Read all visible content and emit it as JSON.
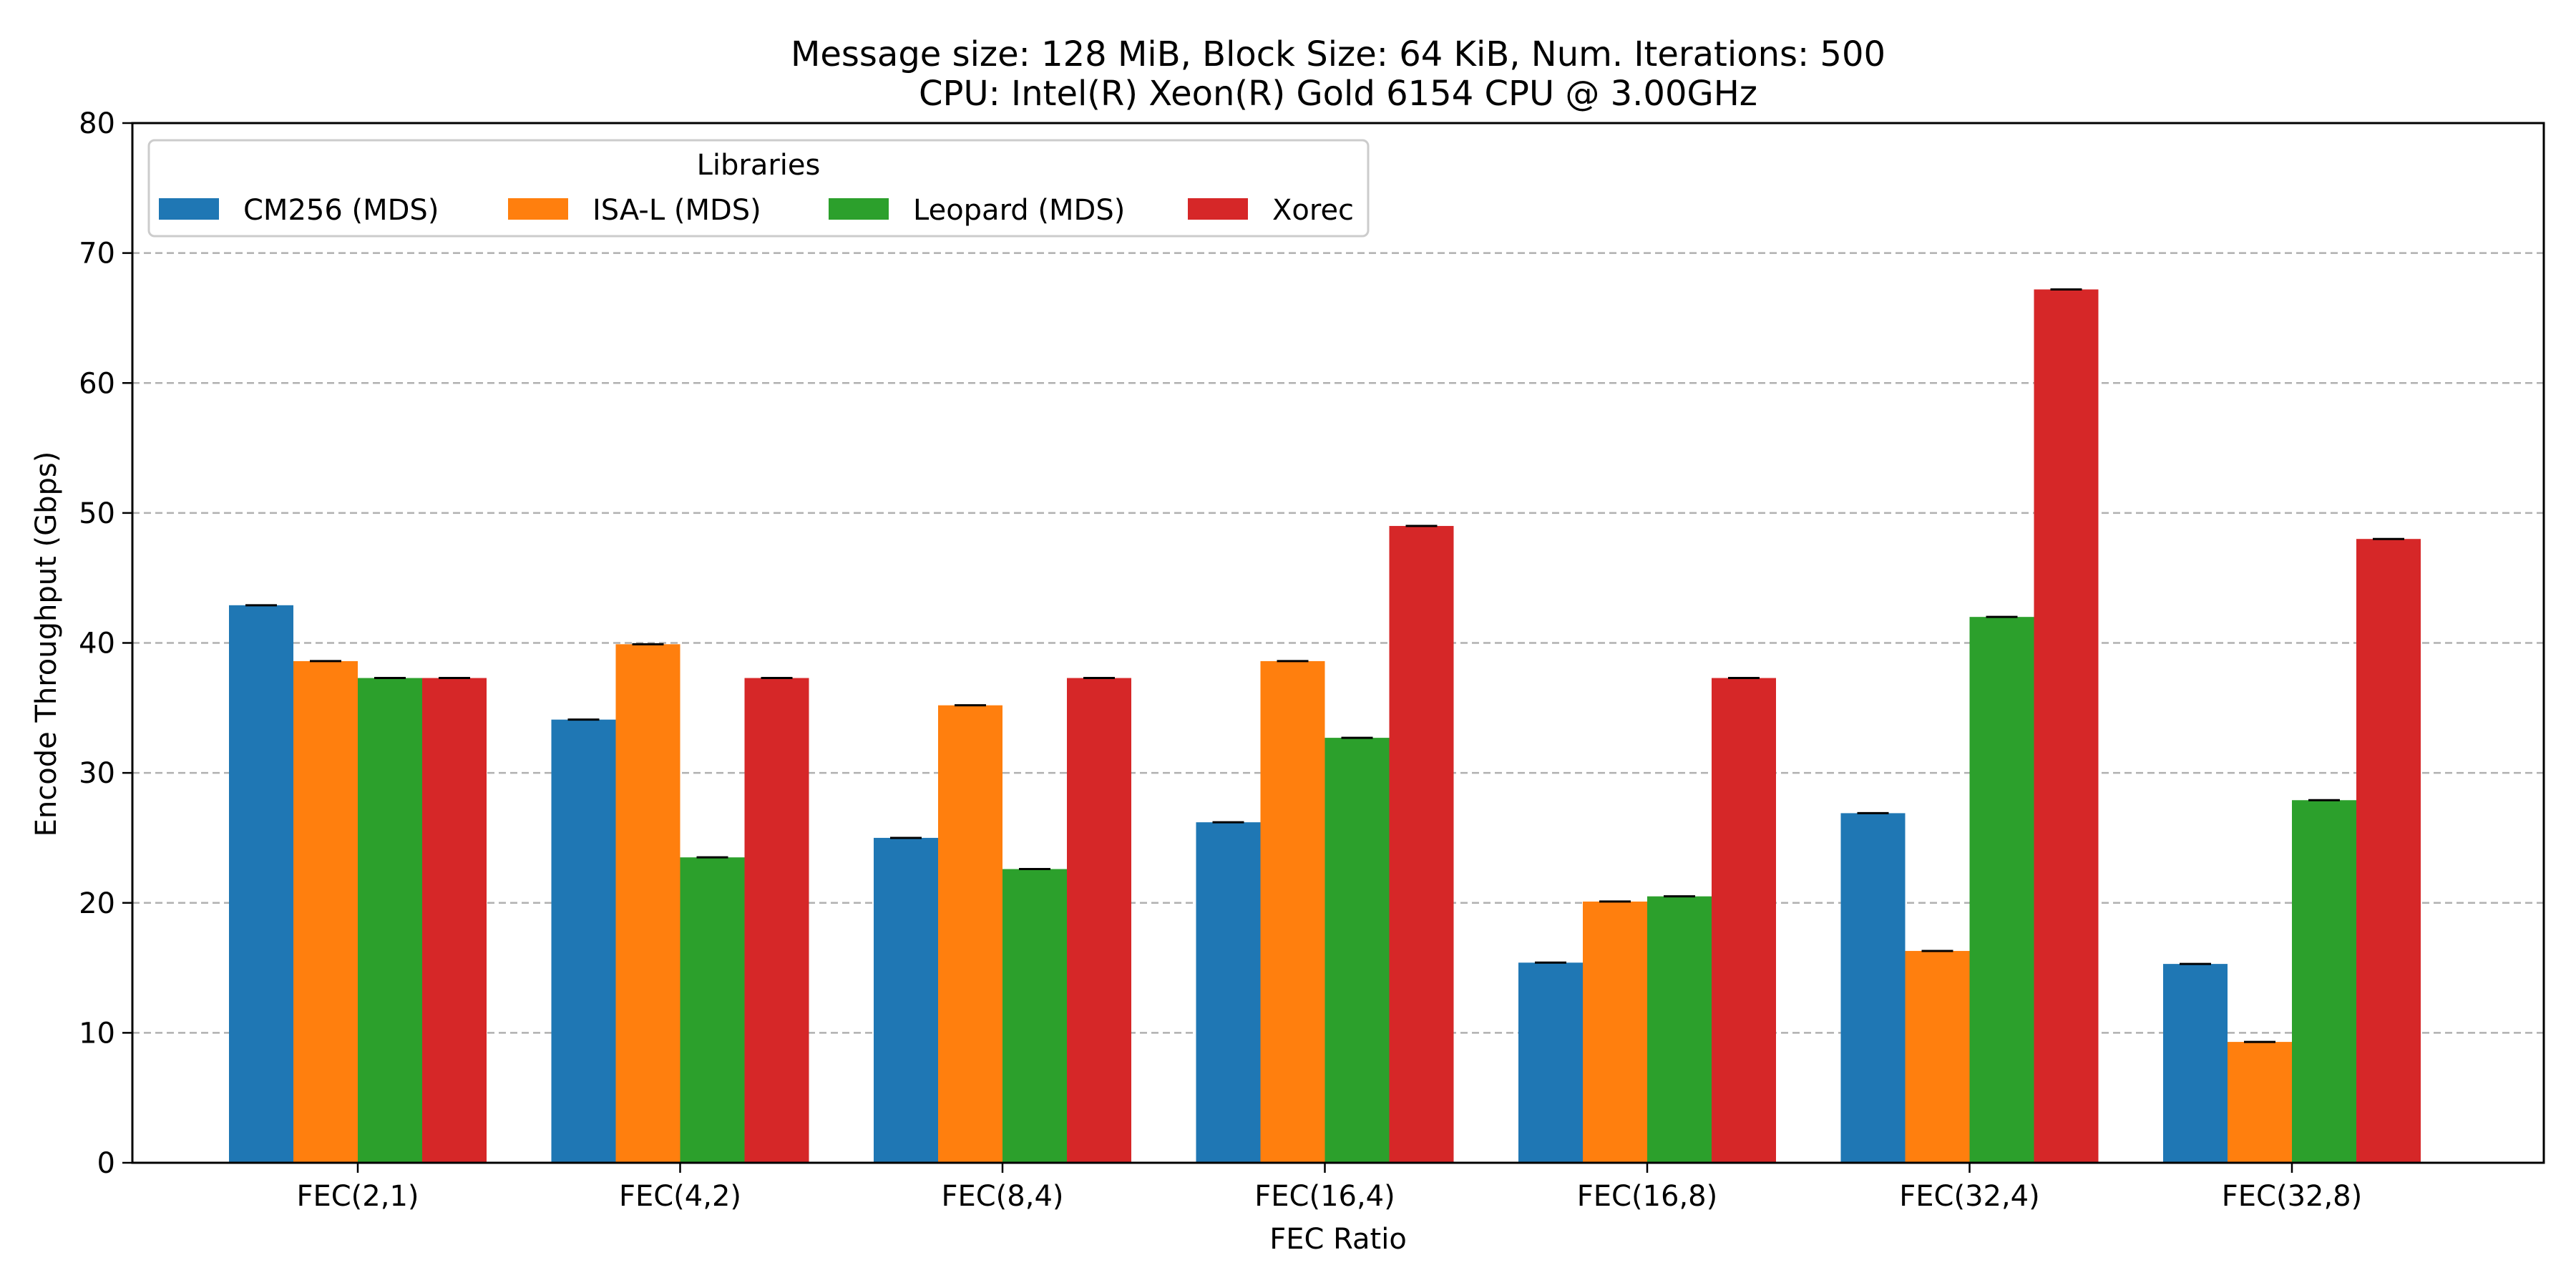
{
  "chart_data": {
    "type": "bar",
    "title": "Message size: 128 MiB, Block Size: 64 KiB, Num. Iterations: 500",
    "subtitle": "CPU: Intel(R) Xeon(R) Gold 6154 CPU @ 3.00GHz",
    "xlabel": "FEC Ratio",
    "ylabel": "Encode Throughput (Gbps)",
    "ylim": [
      0,
      80
    ],
    "yticks": [
      "0",
      "10",
      "20",
      "30",
      "40",
      "50",
      "60",
      "70",
      "80"
    ],
    "grid": "horizontal dashed",
    "legend": {
      "title": "Libraries",
      "placement": "top-left"
    },
    "categories": [
      "FEC(2,1)",
      "FEC(4,2)",
      "FEC(8,4)",
      "FEC(16,4)",
      "FEC(16,8)",
      "FEC(32,4)",
      "FEC(32,8)"
    ],
    "series": [
      {
        "name": "CM256 (MDS)",
        "color": "#1f77b4",
        "values": [
          42.9,
          34.1,
          25.0,
          26.2,
          15.4,
          26.9,
          15.3
        ]
      },
      {
        "name": "ISA-L (MDS)",
        "color": "#ff7f0e",
        "values": [
          38.6,
          39.9,
          35.2,
          38.6,
          20.1,
          16.3,
          9.3
        ]
      },
      {
        "name": "Leopard (MDS)",
        "color": "#2ca02c",
        "values": [
          37.3,
          23.5,
          22.6,
          32.7,
          20.5,
          42.0,
          27.9
        ]
      },
      {
        "name": "Xorec",
        "color": "#d62728",
        "values": [
          37.3,
          37.3,
          37.3,
          49.0,
          37.3,
          67.2,
          48.0
        ]
      }
    ]
  }
}
